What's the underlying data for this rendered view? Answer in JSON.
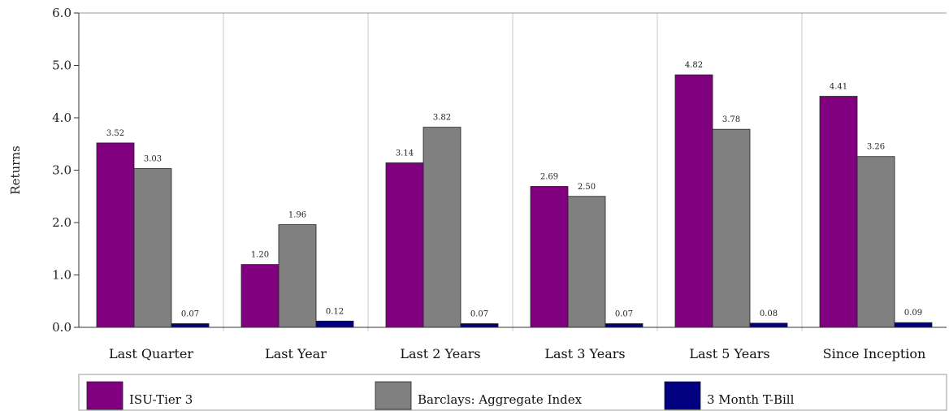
{
  "chart_data": {
    "type": "bar",
    "title": "",
    "xlabel": "",
    "ylabel": "Returns",
    "ylim": [
      0,
      6
    ],
    "yticks": [
      "0.0",
      "1.0",
      "2.0",
      "3.0",
      "4.0",
      "5.0",
      "6.0"
    ],
    "grid": "vertical separators between categories",
    "legend_position": "bottom",
    "categories": [
      "Last Quarter",
      "Last Year",
      "Last 2 Years",
      "Last 3 Years",
      "Last 5 Years",
      "Since Inception"
    ],
    "series": [
      {
        "name": "ISU-Tier 3",
        "color": "#800080",
        "values": [
          3.52,
          1.2,
          3.14,
          2.69,
          4.82,
          4.41
        ],
        "labels": [
          "3.52",
          "1.20",
          "3.14",
          "2.69",
          "4.82",
          "4.41"
        ]
      },
      {
        "name": "Barclays: Aggregate Index",
        "color": "#808080",
        "values": [
          3.03,
          1.96,
          3.82,
          2.5,
          3.78,
          3.26
        ],
        "labels": [
          "3.03",
          "1.96",
          "3.82",
          "2.50",
          "3.78",
          "3.26"
        ]
      },
      {
        "name": "3 Month T-Bill",
        "color": "#000080",
        "values": [
          0.07,
          0.12,
          0.07,
          0.07,
          0.08,
          0.09
        ],
        "labels": [
          "0.07",
          "0.12",
          "0.07",
          "0.07",
          "0.08",
          "0.09"
        ]
      }
    ]
  }
}
